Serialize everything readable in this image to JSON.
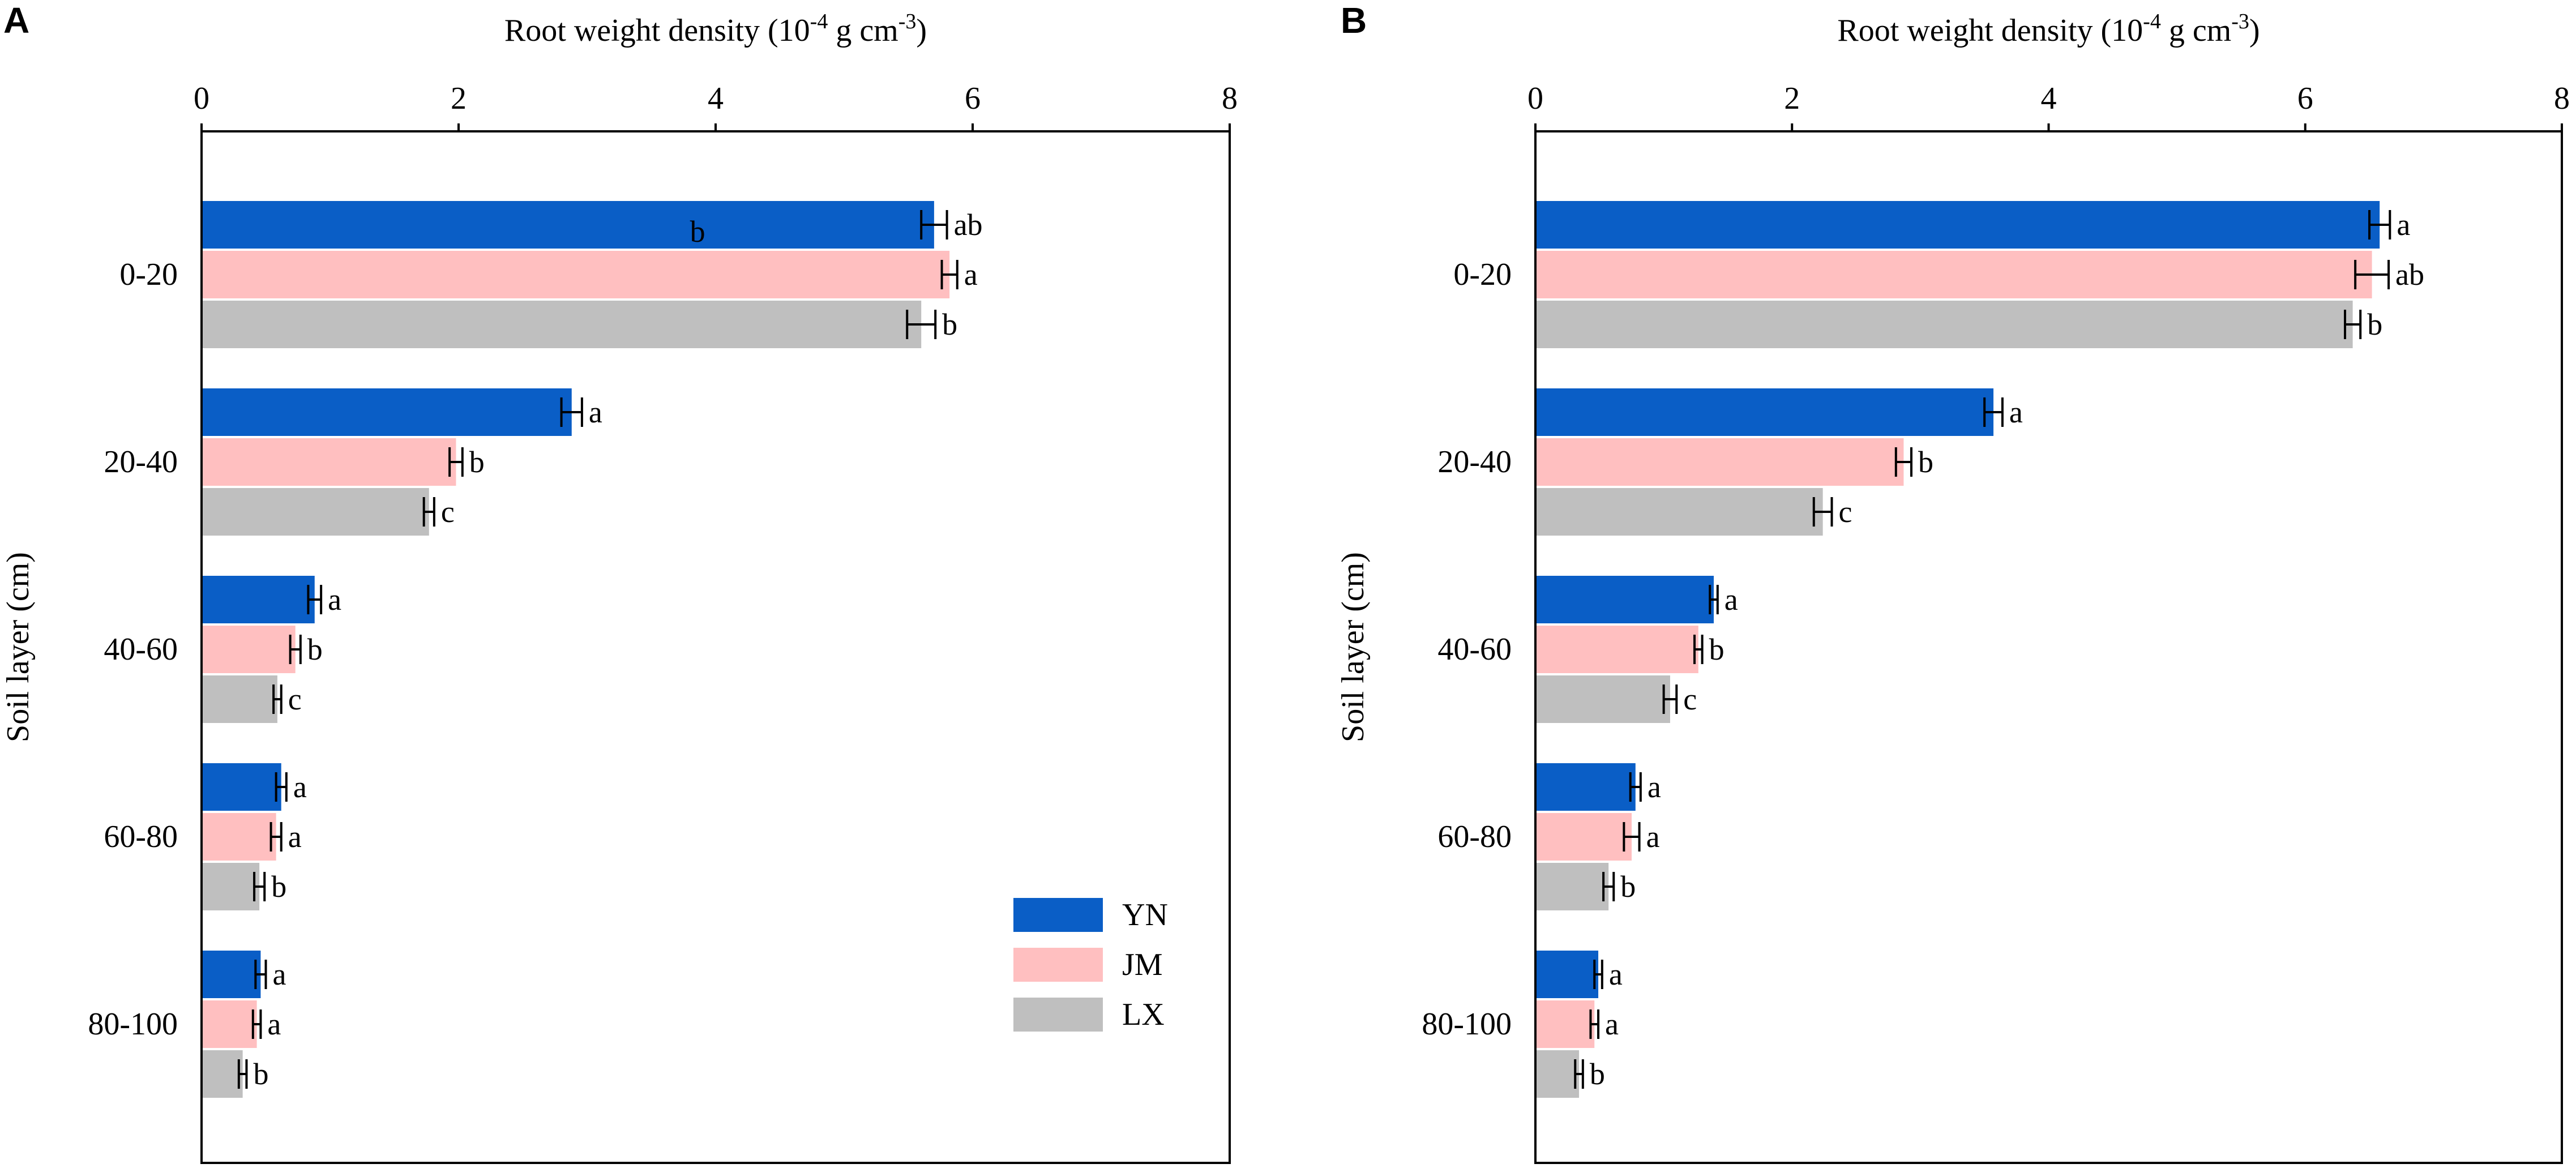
{
  "colors": {
    "YN": "#0a5ec6",
    "JM": "#ffbfc0",
    "LX": "#bfbfbf",
    "axis": "#000000"
  },
  "chart_data": [
    {
      "type": "bar",
      "orientation": "horizontal",
      "panel_label": "A",
      "title": "",
      "xlabel": "Root weight density (10",
      "xlabel_exp": "-4",
      "xlabel_mid": " g cm",
      "xlabel_exp2": "-3",
      "xlabel_end": ")",
      "ylabel": "Soil layer (cm)",
      "xlim": [
        0,
        8
      ],
      "xticks": [
        "0",
        "2",
        "4",
        "6",
        "8"
      ],
      "categories": [
        "0-20",
        "20-40",
        "40-60",
        "60-80",
        "80-100"
      ],
      "series": [
        {
          "name": "YN",
          "values": [
            5.7,
            2.88,
            0.88,
            0.62,
            0.46
          ],
          "errors": [
            0.1,
            0.08,
            0.05,
            0.04,
            0.04
          ],
          "letters": [
            "ab",
            "a",
            "a",
            "a",
            "a"
          ]
        },
        {
          "name": "JM",
          "values": [
            5.82,
            1.98,
            0.73,
            0.58,
            0.43
          ],
          "errors": [
            0.06,
            0.05,
            0.04,
            0.04,
            0.03
          ],
          "letters": [
            "a",
            "b",
            "b",
            "a",
            "a"
          ]
        },
        {
          "name": "LX",
          "values": [
            5.6,
            1.77,
            0.59,
            0.45,
            0.32
          ],
          "errors": [
            0.11,
            0.04,
            0.03,
            0.04,
            0.03
          ],
          "letters": [
            "b",
            "c",
            "c",
            "b",
            "b"
          ]
        }
      ],
      "annotations": [
        {
          "text": "b",
          "x": 3.8,
          "category": "0-20",
          "series": "YN"
        }
      ],
      "legend": {
        "position": "bottom-right",
        "entries": [
          "YN",
          "JM",
          "LX"
        ]
      }
    },
    {
      "type": "bar",
      "orientation": "horizontal",
      "panel_label": "B",
      "title": "",
      "xlabel": "Root weight density (10",
      "xlabel_exp": "-4",
      "xlabel_mid": " g cm",
      "xlabel_exp2": "-3",
      "xlabel_end": ")",
      "ylabel": "Soil layer (cm)",
      "xlim": [
        0,
        8
      ],
      "xticks": [
        "0",
        "2",
        "4",
        "6",
        "8"
      ],
      "categories": [
        "0-20",
        "20-40",
        "40-60",
        "60-80",
        "80-100"
      ],
      "series": [
        {
          "name": "YN",
          "values": [
            6.58,
            3.57,
            1.39,
            0.78,
            0.49
          ],
          "errors": [
            0.08,
            0.07,
            0.03,
            0.04,
            0.03
          ],
          "letters": [
            "a",
            "a",
            "a",
            "a",
            "a"
          ]
        },
        {
          "name": "JM",
          "values": [
            6.52,
            2.87,
            1.27,
            0.75,
            0.46
          ],
          "errors": [
            0.13,
            0.06,
            0.03,
            0.06,
            0.03
          ],
          "letters": [
            "ab",
            "b",
            "b",
            "a",
            "a"
          ]
        },
        {
          "name": "LX",
          "values": [
            6.37,
            2.24,
            1.05,
            0.57,
            0.34
          ],
          "errors": [
            0.06,
            0.07,
            0.05,
            0.04,
            0.03
          ],
          "letters": [
            "b",
            "c",
            "c",
            "b",
            "b"
          ]
        }
      ],
      "legend": {
        "position": "none",
        "entries": []
      }
    }
  ]
}
